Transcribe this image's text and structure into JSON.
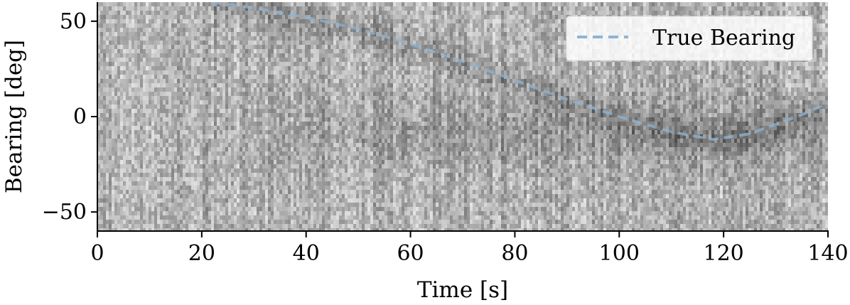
{
  "chart_data": {
    "type": "heatmap",
    "title": "",
    "xlabel": "Time [s]",
    "ylabel": "Bearing [deg]",
    "xlim": [
      0,
      140
    ],
    "ylim": [
      -60,
      60
    ],
    "x_ticks": [
      0,
      20,
      40,
      60,
      80,
      100,
      120,
      140
    ],
    "y_ticks": [
      50,
      0,
      -50
    ],
    "x_tick_labels": [
      "0",
      "20",
      "40",
      "60",
      "80",
      "100",
      "120",
      "140"
    ],
    "y_tick_labels": [
      "50",
      "0",
      "−50"
    ],
    "colormap": "grayscale",
    "grid": false,
    "legend": {
      "placement": "top-right",
      "entries": [
        "True Bearing"
      ]
    },
    "series": [
      {
        "name": "True Bearing",
        "style": "dashed",
        "color": "#8fb4d4",
        "x": [
          22,
          30,
          40,
          50,
          60,
          70,
          80,
          90,
          100,
          110,
          118,
          125,
          130,
          135,
          140
        ],
        "y": [
          60,
          57,
          52,
          46,
          38,
          29,
          19,
          9,
          0,
          -8,
          -12,
          -9,
          -4,
          1,
          7
        ]
      }
    ]
  }
}
